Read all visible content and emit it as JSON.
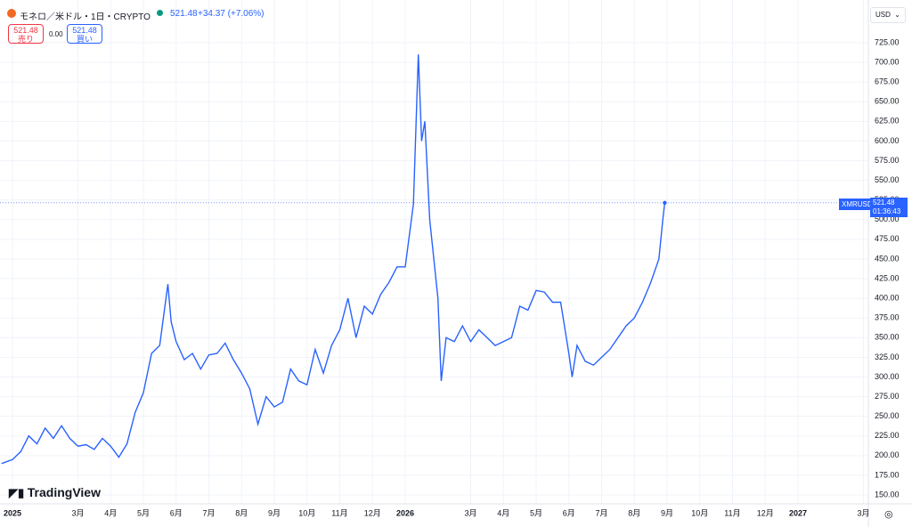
{
  "header": {
    "symbol": "モネロ／米ドル・1日・CRYPTO",
    "price": "521.48",
    "change": "+34.37 (+7.06%)"
  },
  "trade": {
    "sell_price": "521.48",
    "sell_label": "売り",
    "spread": "0.00",
    "buy_price": "521.48",
    "buy_label": "買い"
  },
  "currency": "USD",
  "price_tag": {
    "symbol": "XMRUSD",
    "price": "521.48",
    "countdown": "01:36:43"
  },
  "logo": "TradingView",
  "chart_data": {
    "type": "line",
    "grid": true,
    "xlim": [
      -0.38,
      26.15
    ],
    "ylim": [
      138.7,
      779.3
    ],
    "xticks": [
      {
        "value": 0,
        "label": "2025"
      },
      {
        "value": 2,
        "label": "3月"
      },
      {
        "value": 3,
        "label": "4月"
      },
      {
        "value": 4,
        "label": "5月"
      },
      {
        "value": 5,
        "label": "6月"
      },
      {
        "value": 6,
        "label": "7月"
      },
      {
        "value": 7,
        "label": "8月"
      },
      {
        "value": 8,
        "label": "9月"
      },
      {
        "value": 9,
        "label": "10月"
      },
      {
        "value": 10,
        "label": "11月"
      },
      {
        "value": 11,
        "label": "12月"
      },
      {
        "value": 12,
        "label": "2026"
      },
      {
        "value": 14,
        "label": "3月"
      },
      {
        "value": 15,
        "label": "4月"
      },
      {
        "value": 16,
        "label": "5月"
      },
      {
        "value": 17,
        "label": "6月"
      },
      {
        "value": 18,
        "label": "7月"
      },
      {
        "value": 19,
        "label": "8月"
      },
      {
        "value": 20,
        "label": "9月"
      },
      {
        "value": 21,
        "label": "10月"
      },
      {
        "value": 22,
        "label": "11月"
      },
      {
        "value": 23,
        "label": "12月"
      },
      {
        "value": 24,
        "label": "2027"
      },
      {
        "value": 26,
        "label": "3月"
      }
    ],
    "yticks": [
      {
        "value": 150,
        "label": "150.00"
      },
      {
        "value": 175,
        "label": "175.00"
      },
      {
        "value": 200,
        "label": "200.00"
      },
      {
        "value": 225,
        "label": "225.00"
      },
      {
        "value": 250,
        "label": "250.00"
      },
      {
        "value": 275,
        "label": "275.00"
      },
      {
        "value": 300,
        "label": "300.00"
      },
      {
        "value": 325,
        "label": "325.00"
      },
      {
        "value": 350,
        "label": "350.00"
      },
      {
        "value": 375,
        "label": "375.00"
      },
      {
        "value": 400,
        "label": "400.00"
      },
      {
        "value": 425,
        "label": "425.00"
      },
      {
        "value": 450,
        "label": "450.00"
      },
      {
        "value": 475,
        "label": "475.00"
      },
      {
        "value": 500,
        "label": "500.00"
      },
      {
        "value": 525,
        "label": "525.00"
      },
      {
        "value": 550,
        "label": "550.00"
      },
      {
        "value": 575,
        "label": "575.00"
      },
      {
        "value": 600,
        "label": "600.00"
      },
      {
        "value": 625,
        "label": "625.00"
      },
      {
        "value": 650,
        "label": "650.00"
      },
      {
        "value": 675,
        "label": "675.00"
      },
      {
        "value": 700,
        "label": "700.00"
      },
      {
        "value": 725,
        "label": "725.00"
      }
    ],
    "series": [
      {
        "name": "XMRUSD",
        "color": "#2962ff",
        "x": [
          -0.33,
          0,
          0.25,
          0.5,
          0.75,
          1,
          1.25,
          1.5,
          1.75,
          2,
          2.25,
          2.5,
          2.75,
          3,
          3.25,
          3.5,
          3.75,
          4,
          4.25,
          4.5,
          4.75,
          4.85,
          5,
          5.25,
          5.5,
          5.75,
          6,
          6.25,
          6.5,
          6.75,
          7,
          7.25,
          7.5,
          7.75,
          8,
          8.25,
          8.5,
          8.75,
          9,
          9.25,
          9.5,
          9.75,
          10,
          10.25,
          10.5,
          10.75,
          11,
          11.25,
          11.5,
          11.75,
          12,
          12.25,
          12.4,
          12.5,
          12.6,
          12.75,
          13,
          13.1,
          13.25,
          13.5,
          13.75,
          14,
          14.25,
          14.5,
          14.75,
          15,
          15.25,
          15.5,
          15.75,
          16,
          16.25,
          16.5,
          16.75,
          17,
          17.1,
          17.25,
          17.5,
          17.75,
          18,
          18.25,
          18.5,
          18.75,
          19,
          19.25,
          19.5,
          19.75,
          19.87,
          19.93
        ],
        "values": [
          190,
          195,
          205,
          225,
          215,
          235,
          222,
          238,
          222,
          212,
          214,
          208,
          222,
          212,
          198,
          215,
          255,
          280,
          330,
          340,
          418,
          370,
          345,
          322,
          330,
          310,
          328,
          330,
          343,
          322,
          305,
          285,
          240,
          275,
          262,
          268,
          310,
          295,
          290,
          335,
          305,
          340,
          360,
          400,
          350,
          390,
          380,
          405,
          420,
          440,
          440,
          520,
          710,
          600,
          625,
          500,
          400,
          295,
          350,
          345,
          365,
          345,
          360,
          350,
          340,
          345,
          350,
          390,
          385,
          410,
          408,
          395,
          395,
          330,
          300,
          340,
          320,
          315,
          325,
          335,
          350,
          365,
          375,
          395,
          420,
          450,
          500,
          521.48
        ]
      }
    ]
  }
}
